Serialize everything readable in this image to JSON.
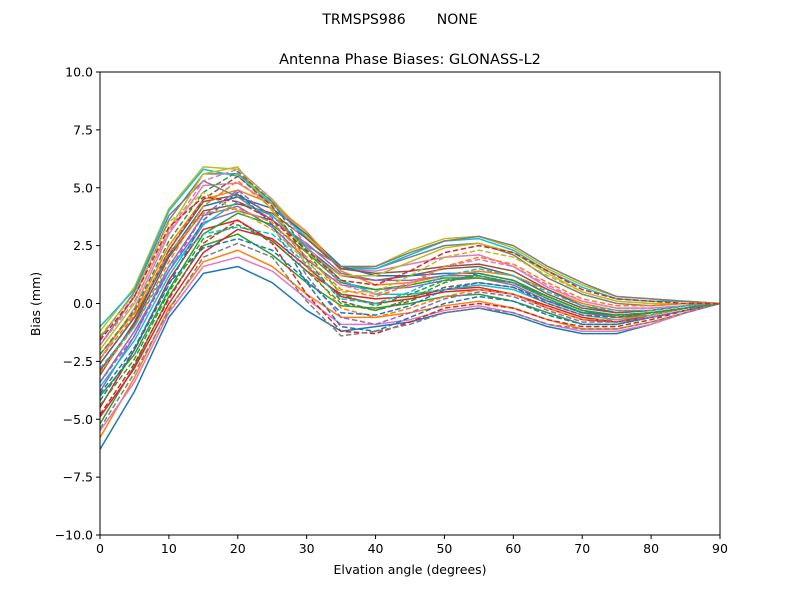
{
  "figure": {
    "suptitle": "TRMSPS986       NONE"
  },
  "chart_data": {
    "type": "line",
    "title": "Antenna Phase Biases: GLONASS-L2",
    "xlabel": "Elvation angle (degrees)",
    "ylabel": "Bias (mm)",
    "xlim": [
      0,
      90
    ],
    "ylim": [
      -10,
      10
    ],
    "xticks": [
      0,
      10,
      20,
      30,
      40,
      50,
      60,
      70,
      80,
      90
    ],
    "xtick_labels": [
      "0",
      "10",
      "20",
      "30",
      "40",
      "50",
      "60",
      "70",
      "80",
      "90"
    ],
    "yticks": [
      -10,
      -7.5,
      -5,
      -2.5,
      0,
      2.5,
      5,
      7.5,
      10
    ],
    "ytick_labels": [
      "−10.0",
      "−7.5",
      "−5.0",
      "−2.5",
      "0.0",
      "2.5",
      "5.0",
      "7.5",
      "10.0"
    ],
    "grid": false,
    "legend": "none",
    "x": [
      0,
      5,
      10,
      15,
      20,
      25,
      30,
      35,
      40,
      45,
      50,
      55,
      60,
      65,
      70,
      75,
      80,
      85,
      90
    ],
    "palette": [
      "#1f77b4",
      "#ff7f0e",
      "#2ca02c",
      "#d62728",
      "#9467bd",
      "#8c564b",
      "#e377c2",
      "#7f7f7f",
      "#bcbd22",
      "#17becf"
    ],
    "series": [
      {
        "style": "solid",
        "values": [
          -6.3,
          -3.8,
          -0.6,
          1.3,
          1.6,
          0.9,
          -0.3,
          -1.2,
          -1.0,
          -0.8,
          -0.4,
          -0.2,
          -0.5,
          -1.0,
          -1.3,
          -1.3,
          -0.9,
          -0.4,
          0
        ]
      },
      {
        "style": "solid",
        "values": [
          -5.8,
          -3.2,
          -0.2,
          1.8,
          2.3,
          1.6,
          0.4,
          -0.6,
          -0.6,
          -0.4,
          -0.1,
          0.1,
          -0.2,
          -0.7,
          -1.1,
          -1.1,
          -0.8,
          -0.4,
          0
        ]
      },
      {
        "style": "solid",
        "values": [
          -5.2,
          -2.7,
          0.3,
          2.5,
          3.0,
          2.1,
          0.9,
          -0.1,
          -0.2,
          0.0,
          0.3,
          0.4,
          0.1,
          -0.4,
          -0.9,
          -0.9,
          -0.6,
          -0.3,
          0
        ]
      },
      {
        "style": "solid",
        "values": [
          -4.5,
          -2.0,
          1.0,
          3.2,
          3.6,
          2.7,
          1.4,
          0.4,
          0.2,
          0.3,
          0.6,
          0.7,
          0.4,
          -0.2,
          -0.7,
          -0.8,
          -0.5,
          -0.2,
          0
        ]
      },
      {
        "style": "solid",
        "values": [
          -3.8,
          -1.4,
          1.6,
          3.8,
          4.2,
          3.3,
          1.9,
          0.8,
          0.6,
          0.7,
          1.0,
          1.1,
          0.8,
          0.1,
          -0.4,
          -0.6,
          -0.4,
          -0.2,
          0
        ]
      },
      {
        "style": "solid",
        "values": [
          -3.1,
          -0.8,
          2.3,
          4.4,
          4.7,
          3.8,
          2.4,
          1.2,
          1.0,
          1.2,
          1.5,
          1.6,
          1.2,
          0.4,
          -0.2,
          -0.4,
          -0.3,
          -0.1,
          0
        ]
      },
      {
        "style": "solid",
        "values": [
          -2.4,
          -0.2,
          3.0,
          5.1,
          5.2,
          4.3,
          2.8,
          1.5,
          1.4,
          1.7,
          2.0,
          2.1,
          1.6,
          0.7,
          0.1,
          -0.2,
          -0.2,
          -0.1,
          0
        ]
      },
      {
        "style": "solid",
        "values": [
          -1.8,
          0.3,
          3.6,
          5.6,
          5.6,
          4.4,
          2.9,
          1.6,
          1.5,
          2.0,
          2.5,
          2.6,
          2.1,
          1.1,
          0.4,
          0.0,
          -0.1,
          0.0,
          0
        ]
      },
      {
        "style": "solid",
        "values": [
          -1.2,
          0.7,
          4.1,
          5.9,
          5.8,
          4.5,
          2.9,
          1.6,
          1.6,
          2.3,
          2.8,
          2.9,
          2.4,
          1.5,
          0.8,
          0.3,
          0.2,
          0.1,
          0
        ]
      },
      {
        "style": "solid",
        "values": [
          -1.0,
          0.6,
          4.0,
          5.8,
          5.5,
          4.3,
          2.8,
          1.5,
          1.5,
          2.1,
          2.7,
          2.8,
          2.3,
          1.4,
          0.7,
          0.2,
          0.1,
          0.1,
          0
        ]
      },
      {
        "style": "solid",
        "values": [
          -2.6,
          -0.6,
          2.1,
          4.2,
          4.6,
          4.1,
          3.0,
          1.6,
          1.2,
          1.2,
          1.3,
          1.3,
          1.0,
          0.3,
          -0.3,
          -0.5,
          -0.4,
          -0.2,
          0
        ]
      },
      {
        "style": "solid",
        "values": [
          -2.2,
          -0.4,
          2.5,
          4.5,
          4.9,
          4.3,
          3.1,
          1.4,
          0.8,
          0.9,
          1.2,
          1.4,
          1.2,
          0.6,
          0.0,
          -0.3,
          -0.3,
          -0.1,
          0
        ]
      },
      {
        "style": "solid",
        "values": [
          -4.0,
          -2.2,
          0.6,
          3.0,
          3.9,
          3.4,
          2.2,
          0.9,
          0.6,
          0.8,
          1.1,
          1.1,
          0.9,
          0.3,
          -0.3,
          -0.6,
          -0.5,
          -0.2,
          0
        ]
      },
      {
        "style": "solid",
        "values": [
          -4.9,
          -2.8,
          0.0,
          2.2,
          3.2,
          2.8,
          1.6,
          0.3,
          0.0,
          0.2,
          0.5,
          0.6,
          0.4,
          -0.1,
          -0.6,
          -0.8,
          -0.6,
          -0.3,
          0
        ]
      },
      {
        "style": "solid",
        "values": [
          -3.4,
          -1.2,
          1.4,
          3.5,
          4.0,
          3.6,
          2.6,
          1.3,
          1.0,
          1.0,
          1.2,
          1.2,
          0.9,
          0.2,
          -0.4,
          -0.6,
          -0.4,
          -0.2,
          0
        ]
      },
      {
        "style": "solid",
        "values": [
          -2.9,
          -0.9,
          2.0,
          4.0,
          4.3,
          3.9,
          2.8,
          1.5,
          1.3,
          1.4,
          1.6,
          1.7,
          1.4,
          0.6,
          -0.1,
          -0.4,
          -0.3,
          -0.1,
          0
        ]
      },
      {
        "style": "solid",
        "values": [
          -5.5,
          -3.4,
          -0.4,
          1.6,
          2.0,
          1.4,
          0.2,
          -0.9,
          -0.9,
          -0.7,
          -0.3,
          -0.1,
          -0.4,
          -0.9,
          -1.2,
          -1.2,
          -0.9,
          -0.4,
          0
        ]
      },
      {
        "style": "solid",
        "values": [
          -1.5,
          0.5,
          3.8,
          5.3,
          4.6,
          3.6,
          2.5,
          1.6,
          1.6,
          2.2,
          2.7,
          2.9,
          2.5,
          1.6,
          0.9,
          0.3,
          0.2,
          0.1,
          0
        ]
      },
      {
        "style": "solid",
        "values": [
          -2.0,
          0.0,
          3.2,
          5.6,
          5.9,
          4.0,
          2.2,
          1.2,
          1.2,
          1.8,
          2.4,
          2.6,
          2.2,
          1.3,
          0.5,
          0.1,
          0.0,
          0.0,
          0
        ]
      },
      {
        "style": "solid",
        "values": [
          -3.6,
          -1.6,
          1.2,
          3.4,
          4.4,
          3.8,
          2.4,
          1.0,
          0.4,
          0.4,
          0.6,
          0.8,
          0.6,
          0.0,
          -0.5,
          -0.7,
          -0.5,
          -0.2,
          0
        ]
      },
      {
        "style": "dashed",
        "values": [
          -4.2,
          -2.0,
          0.8,
          3.6,
          4.8,
          3.4,
          0.9,
          -1.0,
          -1.2,
          -0.6,
          0.0,
          0.3,
          0.1,
          -0.5,
          -0.9,
          -0.9,
          -0.6,
          -0.3,
          0
        ]
      },
      {
        "style": "dashed",
        "values": [
          -3.0,
          -1.0,
          1.8,
          4.2,
          5.3,
          4.1,
          1.6,
          -0.2,
          -0.6,
          -0.2,
          0.3,
          0.6,
          0.4,
          -0.2,
          -0.7,
          -0.7,
          -0.5,
          -0.2,
          0
        ]
      },
      {
        "style": "dashed",
        "values": [
          -2.2,
          -0.3,
          2.7,
          4.8,
          5.7,
          4.4,
          2.2,
          0.4,
          -0.1,
          0.4,
          1.0,
          1.2,
          0.9,
          0.2,
          -0.4,
          -0.5,
          -0.4,
          -0.2,
          0
        ]
      },
      {
        "style": "dashed",
        "values": [
          -4.8,
          -2.6,
          0.2,
          2.6,
          3.6,
          2.6,
          0.4,
          -1.2,
          -1.3,
          -0.8,
          -0.2,
          0.0,
          -0.2,
          -0.7,
          -1.0,
          -1.0,
          -0.7,
          -0.3,
          0
        ]
      },
      {
        "style": "dashed",
        "values": [
          -3.4,
          -1.4,
          1.4,
          3.8,
          4.9,
          3.7,
          1.2,
          -0.6,
          -0.9,
          -0.4,
          0.2,
          0.5,
          0.3,
          -0.3,
          -0.8,
          -0.8,
          -0.6,
          -0.3,
          0
        ]
      },
      {
        "style": "dashed",
        "values": [
          -2.6,
          -0.6,
          2.3,
          4.5,
          5.5,
          4.2,
          1.9,
          0.1,
          -0.3,
          0.1,
          0.7,
          0.9,
          0.7,
          0.0,
          -0.5,
          -0.6,
          -0.4,
          -0.2,
          0
        ]
      },
      {
        "style": "dashed",
        "values": [
          -1.8,
          0.1,
          3.1,
          5.3,
          5.8,
          4.5,
          2.5,
          0.8,
          0.4,
          0.9,
          1.6,
          1.9,
          1.6,
          0.8,
          0.1,
          -0.2,
          -0.2,
          -0.1,
          0
        ]
      },
      {
        "style": "dashed",
        "values": [
          -5.4,
          -3.0,
          -0.3,
          2.0,
          2.6,
          2.0,
          0.1,
          -1.4,
          -1.2,
          -0.9,
          -0.4,
          -0.2,
          -0.4,
          -0.9,
          -1.1,
          -1.1,
          -0.8,
          -0.4,
          0
        ]
      },
      {
        "style": "dashed",
        "values": [
          -1.4,
          0.4,
          3.5,
          4.8,
          4.0,
          3.2,
          1.8,
          0.5,
          0.5,
          1.2,
          2.0,
          2.3,
          2.0,
          1.2,
          0.5,
          0.1,
          0.0,
          0.0,
          0
        ]
      },
      {
        "style": "dashed",
        "values": [
          -2.8,
          -1.0,
          1.6,
          3.0,
          3.3,
          3.0,
          1.7,
          0.2,
          0.0,
          0.5,
          1.2,
          1.5,
          1.2,
          0.5,
          -0.1,
          -0.3,
          -0.3,
          -0.1,
          0
        ]
      },
      {
        "style": "dashed",
        "values": [
          -3.9,
          -1.9,
          0.9,
          2.4,
          2.8,
          2.3,
          1.0,
          -0.4,
          -0.5,
          -0.1,
          0.6,
          0.9,
          0.7,
          0.1,
          -0.4,
          -0.5,
          -0.4,
          -0.2,
          0
        ]
      },
      {
        "style": "dashed",
        "values": [
          -2.4,
          -0.5,
          2.2,
          3.9,
          4.1,
          3.5,
          2.0,
          0.6,
          0.3,
          0.8,
          1.6,
          2.0,
          1.7,
          0.9,
          0.2,
          -0.1,
          -0.1,
          0.0,
          0
        ]
      },
      {
        "style": "dashed",
        "values": [
          -4.4,
          -2.4,
          0.5,
          2.8,
          3.4,
          2.7,
          1.4,
          0.0,
          -0.3,
          0.2,
          0.9,
          1.3,
          1.0,
          0.3,
          -0.3,
          -0.5,
          -0.4,
          -0.2,
          0
        ]
      },
      {
        "style": "dashed",
        "values": [
          -1.6,
          0.3,
          3.3,
          4.6,
          4.4,
          3.6,
          2.3,
          1.0,
          0.8,
          1.4,
          2.2,
          2.5,
          2.2,
          1.4,
          0.6,
          0.2,
          0.1,
          0.0,
          0
        ]
      }
    ]
  }
}
